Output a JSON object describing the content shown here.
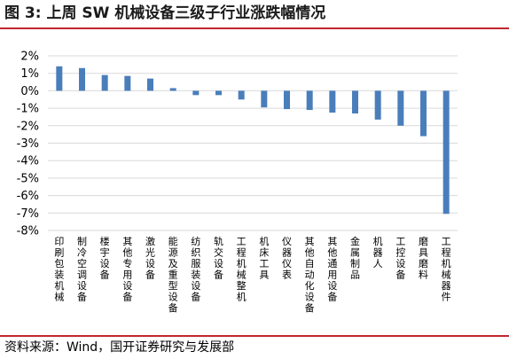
{
  "header": {
    "title": "图 3:  上周 SW 机械设备三级子行业涨跌幅情况"
  },
  "footer": {
    "source": "资料来源：Wind，国开证券研究与发展部"
  },
  "colors": {
    "bar": "#4a7ebb",
    "rule": "#c0262d",
    "grid": "#d9d9d9"
  },
  "chart_data": {
    "type": "bar",
    "categories": [
      "印刷包装机械",
      "制冷空调设备",
      "楼宇设备",
      "其他专用设备",
      "激光设备",
      "能源及重型设备",
      "纺织服装设备",
      "轨交设备",
      "工程机械整机",
      "机床工具",
      "仪器仪表",
      "其他自动化设备",
      "其他通用设备",
      "金属制品",
      "机器人",
      "工控设备",
      "磨具磨料",
      "工程机械器件"
    ],
    "values": [
      1.4,
      1.3,
      0.9,
      0.85,
      0.7,
      0.15,
      -0.25,
      -0.25,
      -0.5,
      -0.95,
      -1.05,
      -1.1,
      -1.25,
      -1.3,
      -1.65,
      -2.0,
      -2.6,
      -7.05
    ],
    "yticks": [
      2,
      1,
      0,
      -1,
      -2,
      -3,
      -4,
      -5,
      -6,
      -7,
      -8
    ],
    "ytick_labels": [
      "2%",
      "1%",
      "0%",
      "-1%",
      "-2%",
      "-3%",
      "-4%",
      "-5%",
      "-6%",
      "-7%",
      "-8%"
    ],
    "ylim": [
      -8,
      2
    ],
    "grid": true
  }
}
